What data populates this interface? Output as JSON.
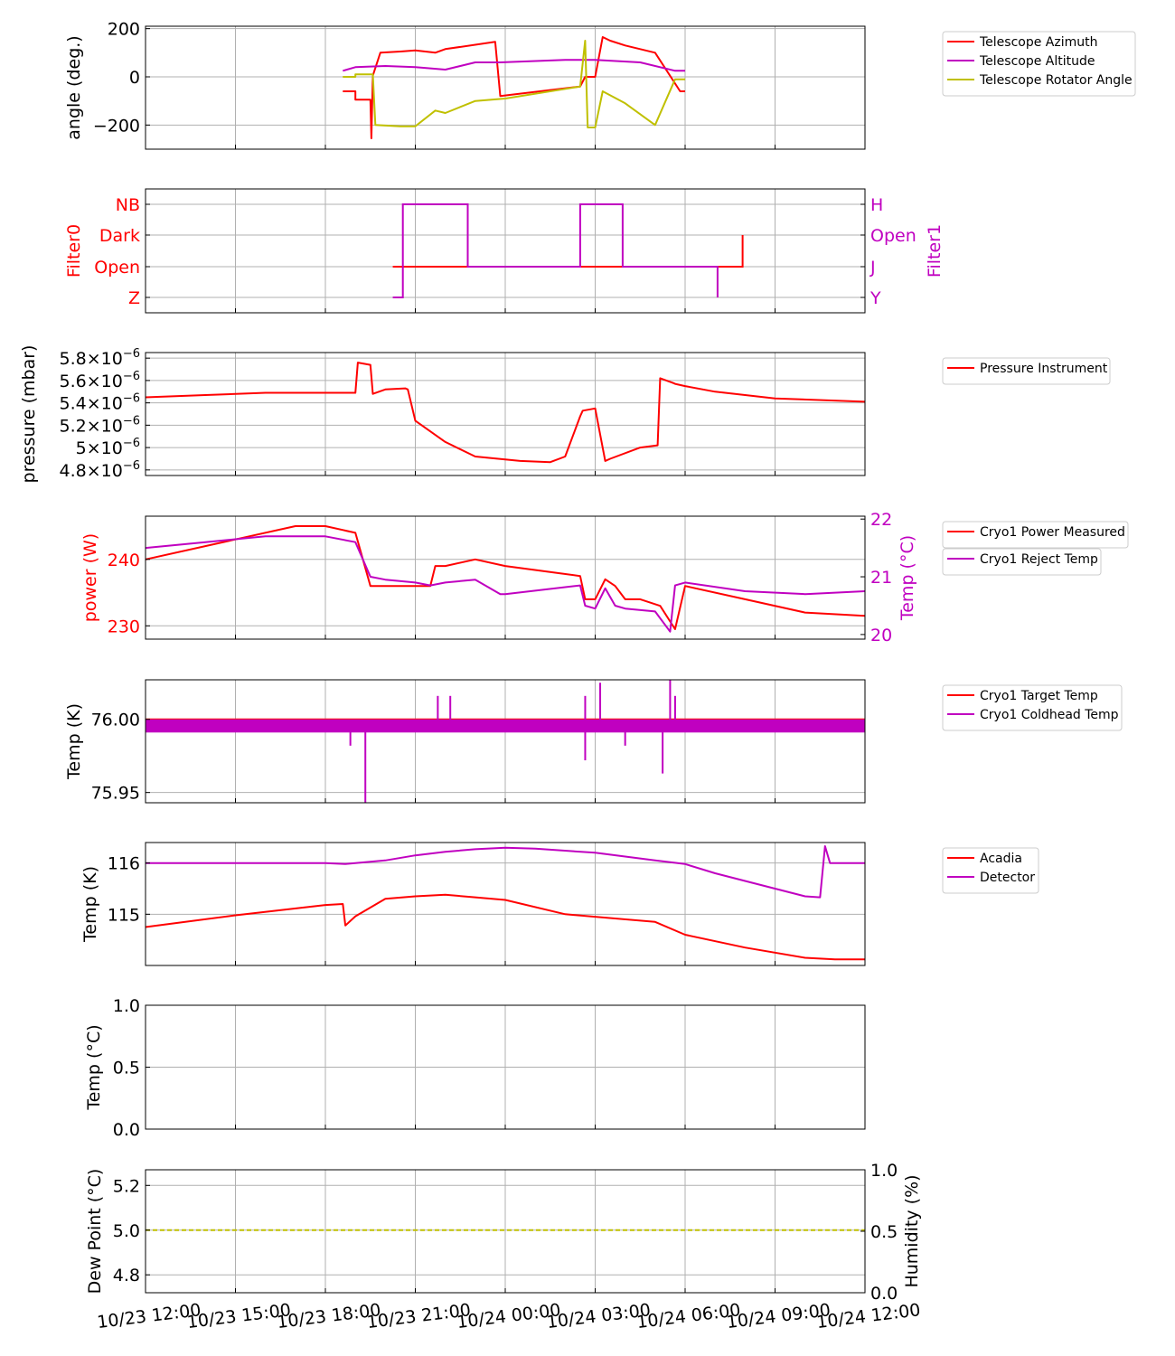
{
  "x_ticks": [
    "10/23 12:00",
    "10/23 15:00",
    "10/23 18:00",
    "10/23 21:00",
    "10/24 00:00",
    "10/24 03:00",
    "10/24 06:00",
    "10/24 09:00",
    "10/24 12:00"
  ],
  "chart_data": [
    {
      "type": "line",
      "ylabel": "angle (deg.)",
      "ylim": [
        -300,
        210
      ],
      "yticks": [
        "200",
        "0",
        "−200"
      ],
      "yticks_values": [
        200,
        0,
        -200
      ],
      "grid": true,
      "legend_position": "outside-right",
      "series": [
        {
          "name": "Telescope Azimuth",
          "color": "#ff0000",
          "x": [
            "10/23 18:35",
            "10/23 19:00",
            "10/23 19:00",
            "10/23 19:30",
            "10/23 19:32",
            "10/23 19:35",
            "10/23 19:50",
            "10/23 20:30",
            "10/23 21:00",
            "10/23 21:40",
            "10/23 22:00",
            "10/23 23:40",
            "10/23 23:50",
            "10/24 02:30",
            "10/24 02:40",
            "10/24 02:40",
            "10/24 03:00",
            "10/24 03:15",
            "10/24 03:30",
            "10/24 04:00",
            "10/24 05:00",
            "10/24 05:50",
            "10/24 06:00"
          ],
          "y": [
            -60,
            -60,
            -95,
            -95,
            -255,
            5,
            100,
            105,
            110,
            100,
            115,
            145,
            -80,
            -40,
            0,
            0,
            0,
            165,
            150,
            130,
            100,
            -60,
            -60
          ]
        },
        {
          "name": "Telescope Altitude",
          "color": "#c000c0",
          "x": [
            "10/23 18:35",
            "10/23 19:00",
            "10/23 20:00",
            "10/23 21:00",
            "10/23 22:00",
            "10/23 23:00",
            "10/23 23:50",
            "10/24 02:00",
            "10/24 03:00",
            "10/24 04:30",
            "10/24 05:40",
            "10/24 06:00"
          ],
          "y": [
            25,
            40,
            45,
            40,
            30,
            60,
            60,
            70,
            70,
            60,
            25,
            25
          ]
        },
        {
          "name": "Telescope Rotator Angle",
          "color": "#c0c000",
          "x": [
            "10/23 18:35",
            "10/23 19:00",
            "10/23 19:00",
            "10/23 19:35",
            "10/23 19:40",
            "10/23 20:30",
            "10/23 21:00",
            "10/23 21:40",
            "10/23 22:00",
            "10/23 23:00",
            "10/24 00:00",
            "10/24 02:30",
            "10/24 02:40",
            "10/24 02:45",
            "10/24 03:00",
            "10/24 03:15",
            "10/24 04:00",
            "10/24 05:00",
            "10/24 05:40",
            "10/24 06:00"
          ],
          "y": [
            0,
            0,
            10,
            10,
            -200,
            -205,
            -205,
            -140,
            -150,
            -100,
            -90,
            -40,
            150,
            -210,
            -210,
            -60,
            -110,
            -200,
            -10,
            -10
          ]
        }
      ]
    },
    {
      "type": "line",
      "ylabel_left": "Filter0",
      "ylabel_right": "Filter1",
      "left_ticks": [
        "NB",
        "Dark",
        "Open",
        "Z"
      ],
      "right_ticks": [
        "H",
        "Open",
        "J",
        "Y"
      ],
      "left_color": "#ff0000",
      "right_color": "#c000c0",
      "levels": [
        3,
        2,
        1,
        0
      ],
      "grid": true,
      "series": [
        {
          "name": "Filter0",
          "color": "#ff0000",
          "axis": "left",
          "x": [
            "10/23 20:15",
            "10/24 07:55",
            "10/24 07:55"
          ],
          "y": [
            1,
            1,
            2
          ]
        },
        {
          "name": "Filter1",
          "color": "#c000c0",
          "axis": "right",
          "x": [
            "10/23 20:15",
            "10/23 20:35",
            "10/23 20:35",
            "10/23 22:45",
            "10/23 22:45",
            "10/24 02:30",
            "10/24 02:30",
            "10/24 03:55",
            "10/24 03:55",
            "10/24 07:05",
            "10/24 07:05"
          ],
          "y": [
            0,
            0,
            3,
            3,
            1,
            1,
            3,
            3,
            1,
            1,
            0
          ]
        }
      ]
    },
    {
      "type": "line",
      "ylabel": "pressure (mbar)",
      "ylim": [
        4.75,
        5.85
      ],
      "ytick_values": [
        4.8,
        5.0,
        5.2,
        5.4,
        5.6,
        5.8
      ],
      "ytick_mantissas": [
        "4.8",
        "5",
        "5.2",
        "5.4",
        "5.6",
        "5.8"
      ],
      "ytick_exponent": "−6",
      "ytick_times": "×10",
      "unit_scale": "1e-6",
      "grid": true,
      "legend_position": "outside-right",
      "series": [
        {
          "name": "Pressure Instrument",
          "color": "#ff0000",
          "x": [
            "10/23 12:00",
            "10/23 14:00",
            "10/23 16:00",
            "10/23 18:00",
            "10/23 19:00",
            "10/23 19:05",
            "10/23 19:30",
            "10/23 19:35",
            "10/23 20:00",
            "10/23 20:40",
            "10/23 20:45",
            "10/23 21:00",
            "10/23 22:00",
            "10/23 23:00",
            "10/24 00:30",
            "10/24 01:30",
            "10/24 02:00",
            "10/24 02:30",
            "10/24 02:35",
            "10/24 03:00",
            "10/24 03:20",
            "10/24 03:30",
            "10/24 04:30",
            "10/24 05:05",
            "10/24 05:10",
            "10/24 05:35",
            "10/24 05:40",
            "10/24 06:00",
            "10/24 07:00",
            "10/24 09:00",
            "10/24 12:00"
          ],
          "y": [
            5.45,
            5.47,
            5.49,
            5.49,
            5.49,
            5.76,
            5.74,
            5.48,
            5.52,
            5.53,
            5.52,
            5.24,
            5.05,
            4.92,
            4.88,
            4.87,
            4.92,
            5.28,
            5.33,
            5.35,
            4.88,
            4.9,
            5.0,
            5.02,
            5.62,
            5.58,
            5.57,
            5.55,
            5.5,
            5.44,
            5.41
          ]
        }
      ]
    },
    {
      "type": "line",
      "ylabel_left": "power (W)",
      "ylabel_right": "Temp (°C)",
      "left_color": "#ff0000",
      "right_color": "#c000c0",
      "ylim_left": [
        228,
        246.5
      ],
      "ylim_right": [
        19.92,
        22.05
      ],
      "left_ticks": [
        "240",
        "230"
      ],
      "left_tick_values": [
        240,
        230
      ],
      "right_ticks": [
        "22",
        "21",
        "20"
      ],
      "right_tick_values": [
        22,
        21,
        20
      ],
      "grid": true,
      "legend_position": "outside-right",
      "series": [
        {
          "name": "Cryo1 Power Measured",
          "color": "#ff0000",
          "axis": "left",
          "x": [
            "10/23 12:00",
            "10/23 15:00",
            "10/23 17:00",
            "10/23 18:00",
            "10/23 19:00",
            "10/23 19:30",
            "10/23 20:00",
            "10/23 21:00",
            "10/23 21:30",
            "10/23 21:40",
            "10/23 22:00",
            "10/23 23:00",
            "10/24 00:00",
            "10/24 02:30",
            "10/24 02:40",
            "10/24 03:00",
            "10/24 03:20",
            "10/24 03:40",
            "10/24 04:00",
            "10/24 04:30",
            "10/24 05:10",
            "10/24 05:40",
            "10/24 06:00",
            "10/24 08:00",
            "10/24 10:00",
            "10/24 12:00"
          ],
          "y": [
            240,
            243,
            245,
            245,
            244,
            236,
            236,
            236,
            236,
            239,
            239,
            240,
            239,
            237.5,
            234,
            234,
            237,
            236,
            234,
            234,
            233,
            229.5,
            236,
            234,
            232,
            231.5
          ]
        },
        {
          "name": "Cryo1 Reject Temp",
          "color": "#c000c0",
          "axis": "right",
          "x": [
            "10/23 12:00",
            "10/23 14:00",
            "10/23 16:00",
            "10/23 18:00",
            "10/23 19:00",
            "10/23 19:30",
            "10/23 20:00",
            "10/23 21:00",
            "10/23 21:30",
            "10/23 22:00",
            "10/23 23:00",
            "10/23 23:50",
            "10/24 00:00",
            "10/24 02:30",
            "10/24 02:40",
            "10/24 03:00",
            "10/24 03:20",
            "10/24 03:40",
            "10/24 04:00",
            "10/24 05:00",
            "10/24 05:30",
            "10/24 05:40",
            "10/24 06:00",
            "10/24 08:00",
            "10/24 10:00",
            "10/24 12:00"
          ],
          "y": [
            21.5,
            21.6,
            21.7,
            21.7,
            21.6,
            21.0,
            20.95,
            20.9,
            20.85,
            20.9,
            20.95,
            20.7,
            20.7,
            20.85,
            20.5,
            20.45,
            20.8,
            20.5,
            20.45,
            20.4,
            20.05,
            20.85,
            20.9,
            20.75,
            20.7,
            20.75
          ]
        }
      ]
    },
    {
      "type": "line",
      "ylabel": "Temp (K)",
      "ylim": [
        75.943,
        76.027
      ],
      "ytick_values": [
        76.0,
        75.95
      ],
      "yticks": [
        "76.00",
        "75.95"
      ],
      "grid": true,
      "legend_position": "outside-right",
      "series": [
        {
          "name": "Cryo1 Target Temp",
          "color": "#ff0000",
          "x": [
            "10/23 12:00",
            "10/24 12:00"
          ],
          "y": [
            76.0,
            76.0
          ]
        },
        {
          "name": "Cryo1 Coldhead Temp",
          "color": "#c000c0",
          "x": [
            "10/23 12:00",
            "10/24 12:00"
          ],
          "y": [
            75.996,
            75.996
          ],
          "band": [
            75.991,
            76.0
          ]
        }
      ],
      "spikes": [
        {
          "x": "10/23 18:50",
          "y": 75.982
        },
        {
          "x": "10/23 19:20",
          "y": 75.942
        },
        {
          "x": "10/23 21:45",
          "y": 76.016
        },
        {
          "x": "10/23 22:10",
          "y": 76.016
        },
        {
          "x": "10/24 02:40",
          "y": 76.016
        },
        {
          "x": "10/24 02:40",
          "y": 75.972
        },
        {
          "x": "10/24 03:10",
          "y": 76.025
        },
        {
          "x": "10/24 04:00",
          "y": 75.982
        },
        {
          "x": "10/24 05:15",
          "y": 75.963
        },
        {
          "x": "10/24 05:30",
          "y": 76.032
        },
        {
          "x": "10/24 05:40",
          "y": 76.016
        }
      ]
    },
    {
      "type": "line",
      "ylabel": "Temp (K)",
      "ylim": [
        114.0,
        116.4
      ],
      "ytick_values": [
        116,
        115
      ],
      "yticks": [
        "116",
        "115"
      ],
      "grid": true,
      "legend_position": "outside-right",
      "series": [
        {
          "name": "Acadia",
          "color": "#ff0000",
          "x": [
            "10/23 12:00",
            "10/23 15:00",
            "10/23 18:00",
            "10/23 18:35",
            "10/23 18:40",
            "10/23 19:00",
            "10/23 20:00",
            "10/23 21:00",
            "10/23 22:00",
            "10/23 23:00",
            "10/24 00:00",
            "10/24 02:00",
            "10/24 05:00",
            "10/24 06:00",
            "10/24 08:00",
            "10/24 10:00",
            "10/24 11:00",
            "10/24 12:00"
          ],
          "y": [
            114.75,
            114.98,
            115.18,
            115.2,
            114.78,
            114.96,
            115.3,
            115.35,
            115.38,
            115.33,
            115.28,
            115.0,
            114.85,
            114.6,
            114.35,
            114.15,
            114.12,
            114.12
          ]
        },
        {
          "name": "Detector",
          "color": "#c000c0",
          "x": [
            "10/23 12:00",
            "10/23 18:00",
            "10/23 18:40",
            "10/23 19:00",
            "10/23 20:00",
            "10/23 21:00",
            "10/23 22:00",
            "10/23 23:00",
            "10/24 00:00",
            "10/24 01:00",
            "10/24 03:00",
            "10/24 05:00",
            "10/24 06:00",
            "10/24 07:00",
            "10/24 08:00",
            "10/24 09:00",
            "10/24 10:00",
            "10/24 10:30",
            "10/24 10:40",
            "10/24 10:50",
            "10/24 11:00",
            "10/24 12:00"
          ],
          "y": [
            116.0,
            116.0,
            115.98,
            116.0,
            116.05,
            116.15,
            116.22,
            116.27,
            116.3,
            116.28,
            116.2,
            116.05,
            115.98,
            115.8,
            115.65,
            115.5,
            115.35,
            115.33,
            116.33,
            116.0,
            116.0,
            116.0
          ]
        }
      ]
    },
    {
      "type": "line",
      "ylabel": "Temp (°C)",
      "ylim": [
        0,
        1
      ],
      "ytick_values": [
        1.0,
        0.5,
        0.0
      ],
      "yticks": [
        "1.0",
        "0.5",
        "0.0"
      ],
      "grid": true,
      "series": []
    },
    {
      "type": "line",
      "ylabel_left": "Dew Point (°C)",
      "ylabel_right": "Humidity (%)",
      "ylim_left": [
        4.72,
        5.27
      ],
      "ylim_right": [
        0,
        1
      ],
      "left_ticks": [
        "5.2",
        "5.0",
        "4.8"
      ],
      "left_tick_values": [
        5.2,
        5.0,
        4.8
      ],
      "right_ticks": [
        "1.0",
        "0.5",
        "0.0"
      ],
      "right_tick_values": [
        1.0,
        0.5,
        0.0
      ],
      "grid": true,
      "series": [
        {
          "name": "Dew Point",
          "color": "#c0c000",
          "style": "dashed",
          "x": [
            "10/23 12:00",
            "10/24 12:00"
          ],
          "y": [
            5.0,
            5.0
          ]
        }
      ]
    }
  ]
}
